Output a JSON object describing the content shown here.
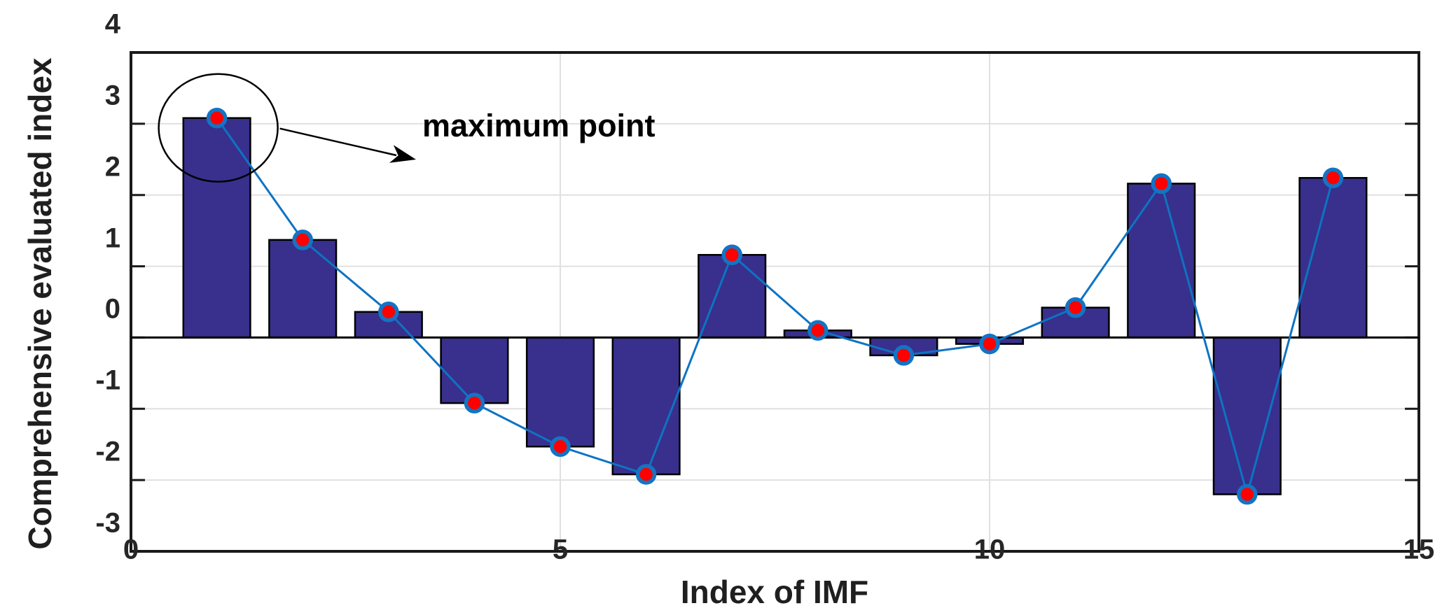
{
  "chart_data": {
    "type": "bar",
    "title": "",
    "x": [
      1,
      2,
      3,
      4,
      5,
      6,
      7,
      8,
      9,
      10,
      11,
      12,
      13,
      14
    ],
    "values": [
      3.08,
      1.37,
      0.36,
      -0.92,
      -1.53,
      -1.92,
      1.16,
      0.1,
      -0.25,
      -0.09,
      0.42,
      2.16,
      -2.2,
      2.24
    ],
    "overlay_line_with_markers": true,
    "xlabel": "Index of IMF",
    "ylabel": "Comprehensive evaluated index",
    "xlim": [
      0,
      15
    ],
    "ylim": [
      -3,
      4
    ],
    "xticks": [
      0,
      5,
      10,
      15
    ],
    "yticks": [
      4,
      3,
      2,
      1,
      0,
      -1,
      -2,
      -3
    ],
    "grid_x": [
      5,
      10
    ],
    "grid_y": [
      3,
      2,
      1,
      -1,
      -2
    ],
    "grid": true,
    "legend_position": "none",
    "annotation": {
      "text": "maximum point",
      "target_x": 1,
      "target_value": 3.08,
      "shape": "ellipse-with-arrow"
    },
    "colors": {
      "bar_fill": "#38308C",
      "bar_edge": "#000000",
      "line": "#0E73C2",
      "marker_fill": "#FF0000",
      "marker_edge": "#1374C4",
      "grid": "#E0E0E0",
      "axis_box": "#1A1A1A",
      "baseline": "#000000",
      "annotation_color": "#000000",
      "text": "#1F1F1F"
    }
  }
}
